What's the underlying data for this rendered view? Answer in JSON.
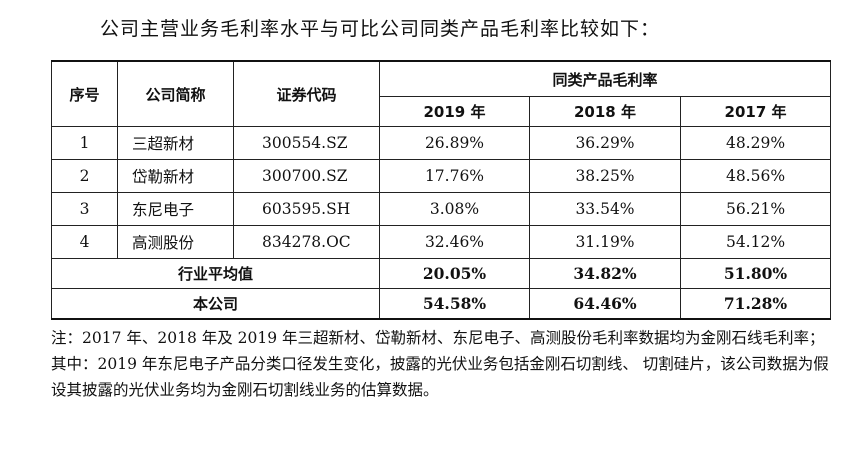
{
  "title": "公司主营业务毛利率水平与可比公司同类产品毛利率比较如下：",
  "table": {
    "headers": {
      "seq": "序号",
      "company": "公司简称",
      "code": "证券代码",
      "group": "同类产品毛利率",
      "years": [
        "2019 年",
        "2018 年",
        "2017 年"
      ]
    },
    "rows": [
      {
        "seq": "1",
        "company": "三超新材",
        "code": "300554.SZ",
        "y2019": "26.89%",
        "y2018": "36.29%",
        "y2017": "48.29%"
      },
      {
        "seq": "2",
        "company": "岱勒新材",
        "code": "300700.SZ",
        "y2019": "17.76%",
        "y2018": "38.25%",
        "y2017": "48.56%"
      },
      {
        "seq": "3",
        "company": "东尼电子",
        "code": "603595.SH",
        "y2019": "3.08%",
        "y2018": "33.54%",
        "y2017": "56.21%"
      },
      {
        "seq": "4",
        "company": "高测股份",
        "code": "834278.OC",
        "y2019": "32.46%",
        "y2018": "31.19%",
        "y2017": "54.12%"
      }
    ],
    "average": {
      "label": "行业平均值",
      "y2019": "20.05%",
      "y2018": "34.82%",
      "y2017": "51.80%"
    },
    "self": {
      "label": "本公司",
      "y2019": "54.58%",
      "y2018": "64.46%",
      "y2017": "71.28%"
    }
  },
  "note": "注：2017 年、2018 年及 2019 年三超新材、岱勒新材、东尼电子、高测股份毛利率数据均为金刚石线毛利率； 其中：2019 年东尼电子产品分类口径发生变化，披露的光伏业务包括金刚石切割线、 切割硅片，该公司数据为假设其披露的光伏业务均为金刚石切割线业务的估算数据。"
}
